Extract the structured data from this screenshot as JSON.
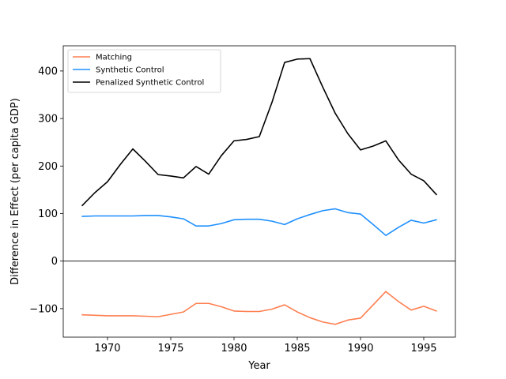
{
  "chart_data": {
    "type": "line",
    "title": "",
    "xlabel": "Year",
    "ylabel": "Difference in Effect (per capita GDP)",
    "xlim": [
      1966.5,
      1997.5
    ],
    "ylim": [
      -160,
      453
    ],
    "xticks": [
      1970,
      1975,
      1980,
      1985,
      1990,
      1995
    ],
    "yticks": [
      -100,
      0,
      100,
      200,
      300,
      400
    ],
    "zero_line": true,
    "grid": false,
    "legend_position": "top-left",
    "x": [
      1968,
      1969,
      1970,
      1971,
      1972,
      1973,
      1974,
      1975,
      1976,
      1977,
      1978,
      1979,
      1980,
      1981,
      1982,
      1983,
      1984,
      1985,
      1986,
      1987,
      1988,
      1989,
      1990,
      1991,
      1992,
      1993,
      1994,
      1995,
      1996
    ],
    "series": [
      {
        "name": "Matching",
        "color": "#ff7f50",
        "values": [
          -113,
          -114,
          -115,
          -115,
          -115,
          -116,
          -117,
          -112,
          -107,
          -89,
          -89,
          -96,
          -105,
          -106,
          -106,
          -101,
          -92,
          -107,
          -119,
          -128,
          -133,
          -124,
          -120,
          -92,
          -64,
          -85,
          -103,
          -95,
          -105
        ]
      },
      {
        "name": "Synthetic Control",
        "color": "#1e90ff",
        "values": [
          94,
          95,
          95,
          95,
          95,
          96,
          96,
          93,
          89,
          74,
          74,
          79,
          87,
          88,
          88,
          84,
          77,
          89,
          98,
          106,
          110,
          102,
          99,
          77,
          54,
          71,
          86,
          80,
          87
        ]
      },
      {
        "name": "Penalized Synthetic Control",
        "color": "#000000",
        "values": [
          117,
          144,
          167,
          203,
          236,
          210,
          182,
          179,
          175,
          199,
          183,
          222,
          253,
          256,
          262,
          334,
          418,
          425,
          426,
          367,
          311,
          268,
          234,
          242,
          253,
          213,
          183,
          169,
          140
        ]
      }
    ]
  }
}
